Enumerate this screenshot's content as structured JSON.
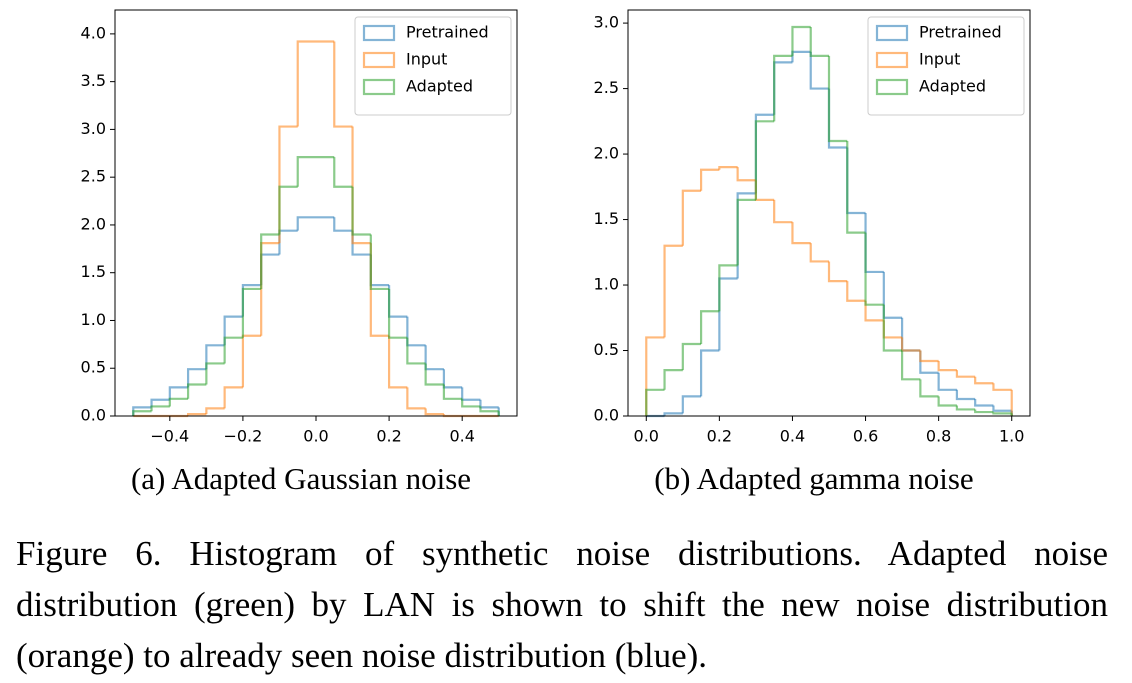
{
  "chart_data": [
    {
      "type": "histogram",
      "caption": "(a) Adapted Gaussian noise",
      "bins": [
        -0.5,
        -0.45,
        -0.4,
        -0.35,
        -0.3,
        -0.25,
        -0.2,
        -0.15,
        -0.1,
        -0.05,
        0,
        0.05,
        0.1,
        0.15,
        0.2,
        0.25,
        0.3,
        0.35,
        0.4,
        0.45,
        0.5
      ],
      "series": [
        {
          "name": "Pretrained",
          "color": "#1f77b4",
          "values": [
            0.09,
            0.17,
            0.3,
            0.49,
            0.74,
            1.04,
            1.37,
            1.69,
            1.94,
            2.08,
            2.08,
            1.94,
            1.69,
            1.37,
            1.04,
            0.74,
            0.49,
            0.3,
            0.17,
            0.09
          ]
        },
        {
          "name": "Input",
          "color": "#ff7f0e",
          "values": [
            0,
            0,
            0,
            0.02,
            0.08,
            0.3,
            0.84,
            1.81,
            3.03,
            3.92,
            3.92,
            3.03,
            1.81,
            0.84,
            0.3,
            0.08,
            0.02,
            0,
            0,
            0
          ]
        },
        {
          "name": "Adapted",
          "color": "#2ca02c",
          "values": [
            0.05,
            0.1,
            0.18,
            0.33,
            0.55,
            0.82,
            1.33,
            1.9,
            2.4,
            2.71,
            2.71,
            2.4,
            1.9,
            1.33,
            0.82,
            0.55,
            0.33,
            0.18,
            0.1,
            0.05
          ]
        }
      ],
      "xlim": [
        -0.55,
        0.55
      ],
      "ylim": [
        0,
        4.25
      ],
      "legend": "upper right",
      "xticks": [
        {
          "value": -0.4,
          "label": "−0.4"
        },
        {
          "value": -0.2,
          "label": "−0.2"
        },
        {
          "value": 0,
          "label": "0.0"
        },
        {
          "value": 0.2,
          "label": "0.2"
        },
        {
          "value": 0.4,
          "label": "0.4"
        }
      ],
      "yticks": [
        {
          "value": 0,
          "label": "0.0"
        },
        {
          "value": 0.5,
          "label": "0.5"
        },
        {
          "value": 1,
          "label": "1.0"
        },
        {
          "value": 1.5,
          "label": "1.5"
        },
        {
          "value": 2,
          "label": "2.0"
        },
        {
          "value": 2.5,
          "label": "2.5"
        },
        {
          "value": 3,
          "label": "3.0"
        },
        {
          "value": 3.5,
          "label": "3.5"
        },
        {
          "value": 4,
          "label": "4.0"
        }
      ]
    },
    {
      "type": "histogram",
      "caption": "(b) Adapted gamma noise",
      "bins": [
        0,
        0.05,
        0.1,
        0.15,
        0.2,
        0.25,
        0.3,
        0.35,
        0.4,
        0.45,
        0.5,
        0.55,
        0.6,
        0.65,
        0.7,
        0.75,
        0.8,
        0.85,
        0.9,
        0.95,
        1
      ],
      "series": [
        {
          "name": "Pretrained",
          "color": "#1f77b4",
          "values": [
            0,
            0.02,
            0.15,
            0.5,
            1.05,
            1.7,
            2.3,
            2.7,
            2.78,
            2.5,
            2.05,
            1.55,
            1.1,
            0.75,
            0.5,
            0.33,
            0.2,
            0.13,
            0.08,
            0.04
          ]
        },
        {
          "name": "Input",
          "color": "#ff7f0e",
          "values": [
            0.6,
            1.3,
            1.72,
            1.88,
            1.9,
            1.8,
            1.65,
            1.48,
            1.32,
            1.18,
            1.03,
            0.88,
            0.73,
            0.6,
            0.5,
            0.42,
            0.35,
            0.3,
            0.25,
            0.2
          ]
        },
        {
          "name": "Adapted",
          "color": "#2ca02c",
          "values": [
            0.2,
            0.35,
            0.55,
            0.8,
            1.15,
            1.65,
            2.25,
            2.75,
            2.97,
            2.75,
            2.1,
            1.4,
            0.85,
            0.5,
            0.28,
            0.15,
            0.08,
            0.05,
            0.03,
            0.02
          ]
        }
      ],
      "xlim": [
        -0.05,
        1.05
      ],
      "ylim": [
        0,
        3.1
      ],
      "legend": "upper right",
      "xticks": [
        {
          "value": 0,
          "label": "0.0"
        },
        {
          "value": 0.2,
          "label": "0.2"
        },
        {
          "value": 0.4,
          "label": "0.4"
        },
        {
          "value": 0.6,
          "label": "0.6"
        },
        {
          "value": 0.8,
          "label": "0.8"
        },
        {
          "value": 1,
          "label": "1.0"
        }
      ],
      "yticks": [
        {
          "value": 0,
          "label": "0.0"
        },
        {
          "value": 0.5,
          "label": "0.5"
        },
        {
          "value": 1,
          "label": "1.0"
        },
        {
          "value": 1.5,
          "label": "1.5"
        },
        {
          "value": 2,
          "label": "2.0"
        },
        {
          "value": 2.5,
          "label": "2.5"
        },
        {
          "value": 3,
          "label": "3.0"
        }
      ]
    }
  ],
  "figure_caption": "Figure 6. Histogram of synthetic noise distributions. Adapted noise distribution (green) by LAN is shown to shift the new noise distribution (orange) to already seen noise distribution (blue)."
}
